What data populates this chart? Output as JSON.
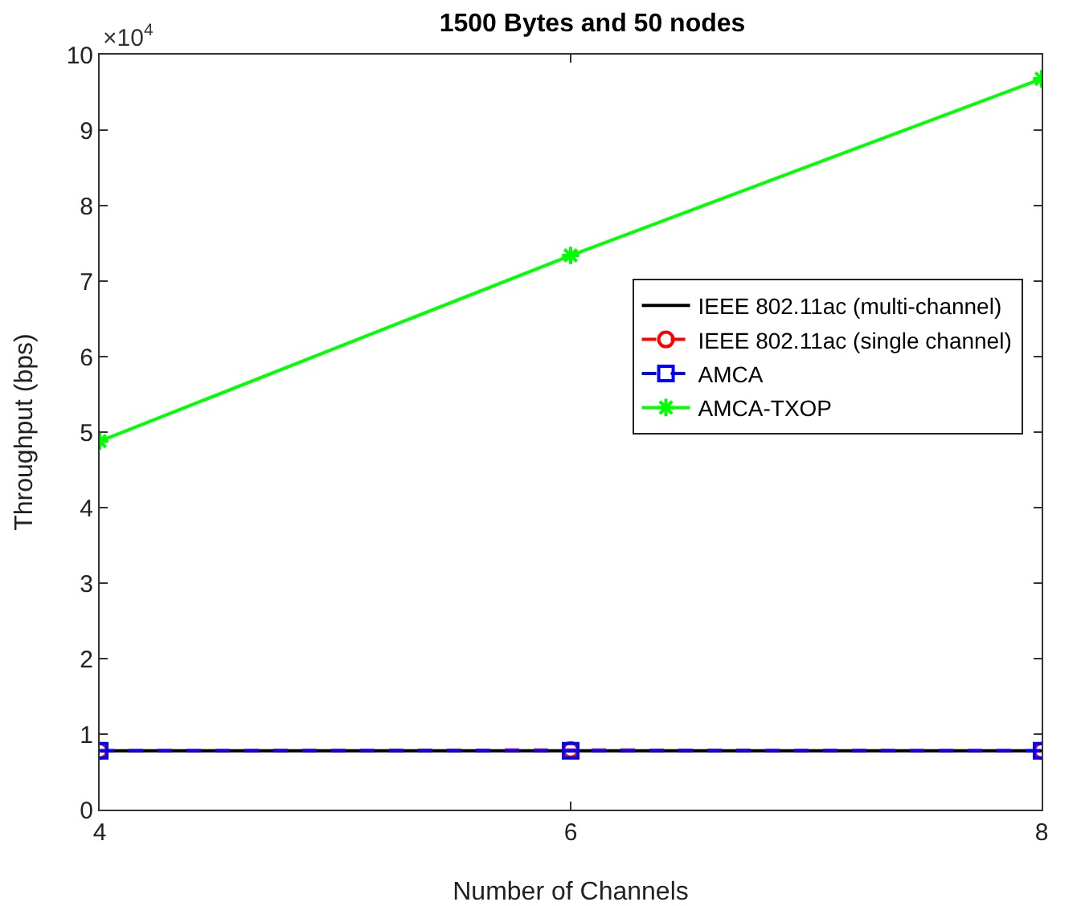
{
  "chart_data": {
    "type": "line",
    "title": "1500 Bytes and 50 nodes",
    "xlabel": "Number of Channels",
    "ylabel": "Throughput (bps)",
    "x": [
      4,
      6,
      8
    ],
    "series": [
      {
        "name": "IEEE 802.11ac (multi-channel)",
        "color": "#000000",
        "values": [
          0.78,
          0.78,
          0.78
        ],
        "marker": "none",
        "line_style": "solid"
      },
      {
        "name": "IEEE 802.11ac (single channel)",
        "color": "#ff0000",
        "values": [
          0.78,
          0.79,
          0.78
        ],
        "marker": "circle",
        "line_style": "dashed"
      },
      {
        "name": "AMCA",
        "color": "#0000ff",
        "values": [
          0.78,
          0.78,
          0.78
        ],
        "marker": "square",
        "line_style": "dashed"
      },
      {
        "name": "AMCA-TXOP",
        "color": "#00ff00",
        "values": [
          4.88,
          7.34,
          9.68
        ],
        "marker": "cross",
        "line_style": "solid"
      }
    ],
    "xlim": [
      4,
      8
    ],
    "xticks": [
      4,
      6,
      8
    ],
    "ylim": [
      0,
      10
    ],
    "yticks": [
      0,
      1,
      2,
      3,
      4,
      5,
      6,
      7,
      8,
      9,
      10
    ],
    "annotations": [
      "×10$^{4}$"
    ],
    "grid": false,
    "legend": "right"
  }
}
